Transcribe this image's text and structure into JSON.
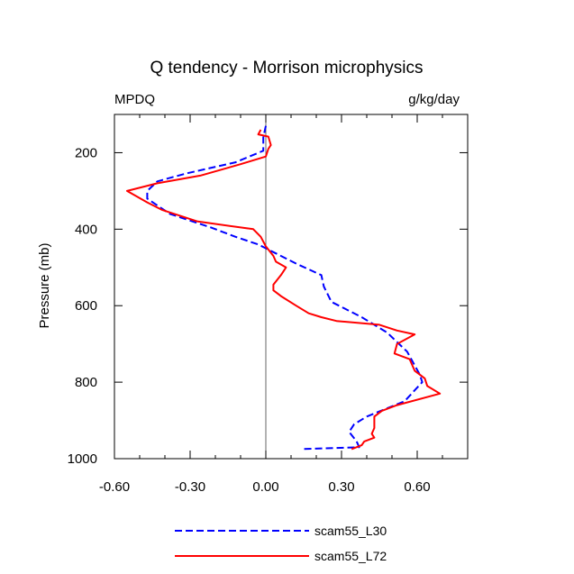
{
  "chart_data": {
    "type": "line",
    "title": "Q tendency - Morrison microphysics",
    "subtitle_left": "MPDQ",
    "subtitle_right": "g/kg/day",
    "xlabel": "",
    "ylabel": "Pressure (mb)",
    "xlim": [
      -0.6,
      0.8
    ],
    "ylim": [
      100,
      1000
    ],
    "y_inverted": true,
    "xticks": [
      -0.6,
      -0.3,
      0.0,
      0.3,
      0.6
    ],
    "xtick_labels": [
      "-0.60",
      "-0.30",
      "0.00",
      "0.30",
      "0.60"
    ],
    "yticks": [
      200,
      400,
      600,
      800,
      1000
    ],
    "ytick_labels": [
      "200",
      "400",
      "600",
      "800",
      "1000"
    ],
    "zero_line": 0.0,
    "legend_position": "bottom",
    "series": [
      {
        "name": "scam55_L30",
        "color": "#0000ff",
        "style": "dashed",
        "points": [
          [
            0.0,
            130
          ],
          [
            -0.01,
            160
          ],
          [
            -0.01,
            195
          ],
          [
            -0.12,
            225
          ],
          [
            -0.32,
            255
          ],
          [
            -0.43,
            275
          ],
          [
            -0.47,
            300
          ],
          [
            -0.47,
            320
          ],
          [
            -0.38,
            360
          ],
          [
            -0.22,
            395
          ],
          [
            -0.12,
            420
          ],
          [
            -0.03,
            440
          ],
          [
            0.03,
            460
          ],
          [
            0.12,
            490
          ],
          [
            0.22,
            520
          ],
          [
            0.23,
            550
          ],
          [
            0.26,
            590
          ],
          [
            0.38,
            630
          ],
          [
            0.48,
            670
          ],
          [
            0.56,
            720
          ],
          [
            0.61,
            780
          ],
          [
            0.62,
            800
          ],
          [
            0.55,
            850
          ],
          [
            0.4,
            890
          ],
          [
            0.35,
            910
          ],
          [
            0.33,
            930
          ],
          [
            0.36,
            955
          ],
          [
            0.37,
            970
          ],
          [
            0.14,
            975
          ]
        ]
      },
      {
        "name": "scam55_L72",
        "color": "#ff0000",
        "style": "solid",
        "points": [
          [
            -0.02,
            140
          ],
          [
            -0.03,
            152
          ],
          [
            0.01,
            158
          ],
          [
            0.02,
            180
          ],
          [
            0.01,
            190
          ],
          [
            0.0,
            210
          ],
          [
            -0.1,
            230
          ],
          [
            -0.26,
            260
          ],
          [
            -0.43,
            280
          ],
          [
            -0.55,
            300
          ],
          [
            -0.47,
            330
          ],
          [
            -0.41,
            350
          ],
          [
            -0.27,
            380
          ],
          [
            -0.05,
            400
          ],
          [
            -0.02,
            420
          ],
          [
            0.0,
            445
          ],
          [
            0.03,
            470
          ],
          [
            0.04,
            485
          ],
          [
            0.08,
            500
          ],
          [
            0.06,
            520
          ],
          [
            0.03,
            545
          ],
          [
            0.03,
            560
          ],
          [
            0.06,
            575
          ],
          [
            0.12,
            600
          ],
          [
            0.17,
            620
          ],
          [
            0.22,
            630
          ],
          [
            0.28,
            640
          ],
          [
            0.45,
            650
          ],
          [
            0.52,
            665
          ],
          [
            0.59,
            675
          ],
          [
            0.52,
            700
          ],
          [
            0.51,
            725
          ],
          [
            0.57,
            740
          ],
          [
            0.59,
            770
          ],
          [
            0.63,
            790
          ],
          [
            0.64,
            810
          ],
          [
            0.69,
            830
          ],
          [
            0.52,
            860
          ],
          [
            0.46,
            875
          ],
          [
            0.43,
            890
          ],
          [
            0.43,
            920
          ],
          [
            0.42,
            935
          ],
          [
            0.43,
            945
          ],
          [
            0.39,
            955
          ],
          [
            0.38,
            965
          ],
          [
            0.34,
            975
          ]
        ]
      }
    ]
  }
}
